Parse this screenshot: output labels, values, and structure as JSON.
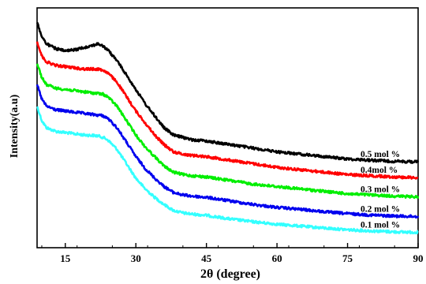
{
  "chart_data": {
    "type": "line",
    "title": "",
    "xlabel": "2θ (degree)",
    "ylabel": "Intensity(a.u)",
    "xlim": [
      9,
      90
    ],
    "ylim": [
      0,
      100
    ],
    "xticks": [
      15,
      30,
      45,
      60,
      75,
      90
    ],
    "yticks_shown": false,
    "grid": false,
    "legend": "inline labels at right end of each curve",
    "series": [
      {
        "name": "0.5 mol %",
        "color": "#000000",
        "points": [
          [
            9,
            94
          ],
          [
            10,
            88
          ],
          [
            11,
            85
          ],
          [
            13,
            83
          ],
          [
            15,
            82
          ],
          [
            17,
            82.5
          ],
          [
            19,
            83.5
          ],
          [
            21,
            84.5
          ],
          [
            22,
            85
          ],
          [
            23,
            84
          ],
          [
            24,
            82.5
          ],
          [
            26,
            78
          ],
          [
            28,
            72
          ],
          [
            30,
            66
          ],
          [
            32,
            60
          ],
          [
            34,
            55
          ],
          [
            36,
            50
          ],
          [
            38,
            47
          ],
          [
            40,
            46
          ],
          [
            42,
            45
          ],
          [
            45,
            44.5
          ],
          [
            50,
            43
          ],
          [
            55,
            41.5
          ],
          [
            60,
            40
          ],
          [
            65,
            39
          ],
          [
            70,
            38
          ],
          [
            75,
            37
          ],
          [
            80,
            36.5
          ],
          [
            85,
            36
          ],
          [
            90,
            35.8
          ]
        ]
      },
      {
        "name": "0.4mol %",
        "color": "#ff0000",
        "points": [
          [
            9,
            86
          ],
          [
            10,
            80
          ],
          [
            11,
            77.5
          ],
          [
            13,
            76
          ],
          [
            15,
            75.5
          ],
          [
            17,
            75
          ],
          [
            19,
            74.5
          ],
          [
            21,
            74.5
          ],
          [
            22,
            74.5
          ],
          [
            23,
            74
          ],
          [
            24,
            73
          ],
          [
            26,
            69
          ],
          [
            28,
            63
          ],
          [
            30,
            57
          ],
          [
            32,
            52
          ],
          [
            34,
            47
          ],
          [
            36,
            43
          ],
          [
            38,
            40
          ],
          [
            40,
            39
          ],
          [
            42,
            38.5
          ],
          [
            45,
            38
          ],
          [
            50,
            36.5
          ],
          [
            55,
            35
          ],
          [
            60,
            33.5
          ],
          [
            65,
            32.5
          ],
          [
            70,
            31.5
          ],
          [
            75,
            30.5
          ],
          [
            80,
            30
          ],
          [
            85,
            29.5
          ],
          [
            90,
            29.2
          ]
        ]
      },
      {
        "name": "0.3 mol %",
        "color": "#00ee00",
        "points": [
          [
            9,
            77
          ],
          [
            10,
            71
          ],
          [
            11,
            68
          ],
          [
            13,
            66.5
          ],
          [
            15,
            66
          ],
          [
            17,
            65.5
          ],
          [
            19,
            65
          ],
          [
            21,
            64.5
          ],
          [
            22,
            64.3
          ],
          [
            23,
            64
          ],
          [
            24,
            63
          ],
          [
            26,
            59
          ],
          [
            28,
            53
          ],
          [
            30,
            47
          ],
          [
            32,
            42
          ],
          [
            34,
            38
          ],
          [
            36,
            34
          ],
          [
            38,
            31.5
          ],
          [
            40,
            30.5
          ],
          [
            42,
            30
          ],
          [
            45,
            29.5
          ],
          [
            50,
            28
          ],
          [
            55,
            26.5
          ],
          [
            60,
            25.5
          ],
          [
            65,
            24.5
          ],
          [
            70,
            23.5
          ],
          [
            75,
            22.5
          ],
          [
            80,
            22
          ],
          [
            85,
            21.5
          ],
          [
            90,
            21.2
          ]
        ]
      },
      {
        "name": "0.2 mol %",
        "color": "#0000ee",
        "points": [
          [
            9,
            68
          ],
          [
            10,
            62
          ],
          [
            11,
            59
          ],
          [
            13,
            57.5
          ],
          [
            15,
            57
          ],
          [
            17,
            56.5
          ],
          [
            19,
            56
          ],
          [
            21,
            55.5
          ],
          [
            22,
            55.3
          ],
          [
            23,
            55
          ],
          [
            24,
            54
          ],
          [
            26,
            50
          ],
          [
            28,
            44
          ],
          [
            30,
            38
          ],
          [
            32,
            33
          ],
          [
            34,
            29
          ],
          [
            36,
            25.5
          ],
          [
            38,
            23
          ],
          [
            40,
            22
          ],
          [
            42,
            21.5
          ],
          [
            45,
            21
          ],
          [
            50,
            19.5
          ],
          [
            55,
            18
          ],
          [
            60,
            16.8
          ],
          [
            65,
            16
          ],
          [
            70,
            15
          ],
          [
            75,
            14.2
          ],
          [
            80,
            13.6
          ],
          [
            85,
            13.2
          ],
          [
            90,
            13
          ]
        ]
      },
      {
        "name": "0.1 mol %",
        "color": "#33ffff",
        "points": [
          [
            9,
            59
          ],
          [
            10,
            53
          ],
          [
            11,
            50
          ],
          [
            13,
            48.5
          ],
          [
            15,
            48
          ],
          [
            17,
            47.5
          ],
          [
            19,
            47
          ],
          [
            21,
            46.8
          ],
          [
            22,
            46.6
          ],
          [
            23,
            46
          ],
          [
            24,
            45
          ],
          [
            26,
            41
          ],
          [
            28,
            35
          ],
          [
            30,
            29
          ],
          [
            32,
            24.5
          ],
          [
            34,
            21
          ],
          [
            36,
            18
          ],
          [
            38,
            15.5
          ],
          [
            40,
            14.5
          ],
          [
            42,
            14
          ],
          [
            45,
            13.5
          ],
          [
            50,
            12
          ],
          [
            55,
            10.8
          ],
          [
            60,
            9.8
          ],
          [
            65,
            9
          ],
          [
            70,
            8.2
          ],
          [
            75,
            7.5
          ],
          [
            80,
            7
          ],
          [
            85,
            6.6
          ],
          [
            90,
            6.4
          ]
        ]
      }
    ],
    "series_labels": [
      "0.5 mol %",
      "0.4mol %",
      "0.3 mol %",
      "0.2 mol %",
      "0.1 mol %"
    ]
  }
}
